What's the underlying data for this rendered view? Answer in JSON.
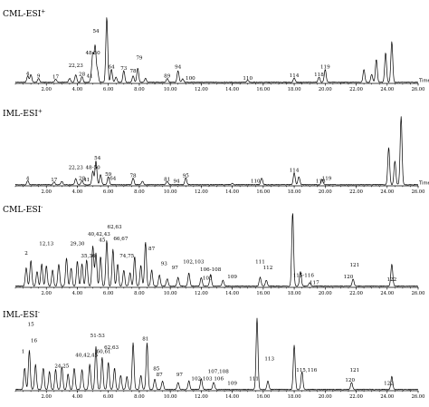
{
  "chart_data": [
    {
      "type": "line",
      "title": "CML-ESI+",
      "title_base": "CML-ESI",
      "title_sup": "+",
      "xlabel": "Time",
      "xlim": [
        0.0,
        26.0
      ],
      "x_ticks": [
        "2.00",
        "4.00",
        "6.00",
        "8.00",
        "10.00",
        "12.00",
        "14.00",
        "16.00",
        "18.00",
        "20.00",
        "22.00",
        "24.00",
        "26.00"
      ],
      "peaks": [
        {
          "t": 0.8,
          "h": 0.1
        },
        {
          "t": 1.0,
          "h": 0.12
        },
        {
          "t": 1.5,
          "h": 0.06
        },
        {
          "t": 2.6,
          "h": 0.05
        },
        {
          "t": 3.5,
          "h": 0.06
        },
        {
          "t": 3.9,
          "h": 0.12
        },
        {
          "t": 4.3,
          "h": 0.09
        },
        {
          "t": 4.9,
          "h": 0.07
        },
        {
          "t": 5.0,
          "h": 0.42
        },
        {
          "t": 5.15,
          "h": 0.55
        },
        {
          "t": 5.3,
          "h": 0.18
        },
        {
          "t": 5.9,
          "h": 1.0
        },
        {
          "t": 6.2,
          "h": 0.2
        },
        {
          "t": 6.5,
          "h": 0.08
        },
        {
          "t": 7.0,
          "h": 0.18
        },
        {
          "t": 7.6,
          "h": 0.1
        },
        {
          "t": 7.9,
          "h": 0.22
        },
        {
          "t": 8.4,
          "h": 0.06
        },
        {
          "t": 9.8,
          "h": 0.06
        },
        {
          "t": 10.5,
          "h": 0.18
        },
        {
          "t": 10.8,
          "h": 0.05
        },
        {
          "t": 15.0,
          "h": 0.03
        },
        {
          "t": 18.0,
          "h": 0.07
        },
        {
          "t": 19.6,
          "h": 0.08
        },
        {
          "t": 20.0,
          "h": 0.2
        },
        {
          "t": 22.5,
          "h": 0.2
        },
        {
          "t": 23.0,
          "h": 0.12
        },
        {
          "t": 23.3,
          "h": 0.35
        },
        {
          "t": 23.9,
          "h": 0.45
        },
        {
          "t": 24.3,
          "h": 0.62
        }
      ],
      "labels": [
        {
          "text": "4",
          "t": 0.8,
          "h": 0.1
        },
        {
          "text": "9",
          "t": 1.5,
          "h": 0.06
        },
        {
          "text": "17",
          "t": 2.6,
          "h": 0.05
        },
        {
          "text": "22,23",
          "t": 3.9,
          "h": 0.22
        },
        {
          "text": "28",
          "t": 4.3,
          "h": 0.09
        },
        {
          "text": "41",
          "t": 4.8,
          "h": 0.06
        },
        {
          "text": "48-50",
          "t": 5.0,
          "h": 0.42
        },
        {
          "text": "54",
          "t": 5.2,
          "h": 0.75
        },
        {
          "text": "64",
          "t": 6.2,
          "h": 0.2
        },
        {
          "text": "73",
          "t": 7.0,
          "h": 0.18
        },
        {
          "text": "78",
          "t": 7.6,
          "h": 0.14
        },
        {
          "text": "79",
          "t": 8.0,
          "h": 0.34
        },
        {
          "text": "89",
          "t": 9.8,
          "h": 0.06
        },
        {
          "text": "94",
          "t": 10.5,
          "h": 0.2
        },
        {
          "text": "100",
          "t": 11.3,
          "h": 0.03
        },
        {
          "text": "110",
          "t": 15.0,
          "h": 0.03
        },
        {
          "text": "114",
          "t": 18.0,
          "h": 0.07
        },
        {
          "text": "118",
          "t": 19.6,
          "h": 0.08
        },
        {
          "text": "119",
          "t": 20.0,
          "h": 0.2
        }
      ]
    },
    {
      "type": "line",
      "title": "IML-ESI+",
      "title_base": "IML-ESI",
      "title_sup": "+",
      "xlabel": "Time",
      "xlim": [
        0.0,
        26.0
      ],
      "x_ticks": [
        "2.00",
        "4.00",
        "6.00",
        "8.00",
        "10.00",
        "12.00",
        "14.00",
        "16.00",
        "18.00",
        "20.00",
        "22.00",
        "24.00",
        "26.00"
      ],
      "peaks": [
        {
          "t": 0.8,
          "h": 0.06
        },
        {
          "t": 2.5,
          "h": 0.04
        },
        {
          "t": 3.0,
          "h": 0.05
        },
        {
          "t": 3.9,
          "h": 0.09
        },
        {
          "t": 4.3,
          "h": 0.06
        },
        {
          "t": 5.0,
          "h": 0.2
        },
        {
          "t": 5.2,
          "h": 0.35
        },
        {
          "t": 5.5,
          "h": 0.15
        },
        {
          "t": 6.0,
          "h": 0.12
        },
        {
          "t": 7.6,
          "h": 0.1
        },
        {
          "t": 8.2,
          "h": 0.05
        },
        {
          "t": 9.8,
          "h": 0.05
        },
        {
          "t": 11.0,
          "h": 0.1
        },
        {
          "t": 14.0,
          "h": 0.02
        },
        {
          "t": 15.9,
          "h": 0.1
        },
        {
          "t": 18.0,
          "h": 0.18
        },
        {
          "t": 18.3,
          "h": 0.12
        },
        {
          "t": 19.8,
          "h": 0.08
        },
        {
          "t": 24.1,
          "h": 0.55
        },
        {
          "t": 24.5,
          "h": 0.35
        },
        {
          "t": 24.9,
          "h": 1.0
        }
      ],
      "labels": [
        {
          "text": "4",
          "t": 0.8,
          "h": 0.06
        },
        {
          "text": "17",
          "t": 2.5,
          "h": 0.04
        },
        {
          "text": "22,23",
          "t": 3.9,
          "h": 0.22
        },
        {
          "text": "28",
          "t": 4.3,
          "h": 0.06
        },
        {
          "text": "41",
          "t": 4.6,
          "h": 0.04
        },
        {
          "text": "48-50",
          "t": 5.0,
          "h": 0.22
        },
        {
          "text": "54",
          "t": 5.3,
          "h": 0.36
        },
        {
          "text": "59",
          "t": 6.0,
          "h": 0.12
        },
        {
          "text": "64",
          "t": 6.3,
          "h": 0.06
        },
        {
          "text": "78",
          "t": 7.6,
          "h": 0.1
        },
        {
          "text": "81",
          "t": 9.8,
          "h": 0.05
        },
        {
          "text": "94",
          "t": 10.4,
          "h": 0.02
        },
        {
          "text": "95",
          "t": 11.0,
          "h": 0.1
        },
        {
          "text": "110",
          "t": 15.5,
          "h": 0.02
        },
        {
          "text": "114",
          "t": 18.0,
          "h": 0.18
        },
        {
          "text": "118",
          "t": 19.7,
          "h": 0.02
        },
        {
          "text": "119",
          "t": 20.1,
          "h": 0.06
        }
      ]
    },
    {
      "type": "line",
      "title": "CML-ESI-",
      "title_base": "CML-ESI",
      "title_sup": "-",
      "xlabel": "",
      "xlim": [
        0.0,
        26.0
      ],
      "x_ticks": [
        "2.00",
        "4.00",
        "6.00",
        "8.00",
        "10.00",
        "12.00",
        "14.00",
        "16.00",
        "18.00",
        "20.00",
        "22.00",
        "24.00",
        "26.00"
      ],
      "peaks": [
        {
          "t": 0.7,
          "h": 0.25
        },
        {
          "t": 1.0,
          "h": 0.35
        },
        {
          "t": 1.4,
          "h": 0.2
        },
        {
          "t": 1.7,
          "h": 0.3
        },
        {
          "t": 2.0,
          "h": 0.28
        },
        {
          "t": 2.4,
          "h": 0.22
        },
        {
          "t": 2.8,
          "h": 0.3
        },
        {
          "t": 3.3,
          "h": 0.38
        },
        {
          "t": 3.6,
          "h": 0.25
        },
        {
          "t": 4.0,
          "h": 0.34
        },
        {
          "t": 4.3,
          "h": 0.3
        },
        {
          "t": 4.6,
          "h": 0.36
        },
        {
          "t": 5.0,
          "h": 0.55
        },
        {
          "t": 5.2,
          "h": 0.45
        },
        {
          "t": 5.5,
          "h": 0.4
        },
        {
          "t": 5.9,
          "h": 0.62
        },
        {
          "t": 6.3,
          "h": 0.5
        },
        {
          "t": 6.6,
          "h": 0.3
        },
        {
          "t": 7.0,
          "h": 0.22
        },
        {
          "t": 7.4,
          "h": 0.18
        },
        {
          "t": 7.7,
          "h": 0.4
        },
        {
          "t": 8.1,
          "h": 0.28
        },
        {
          "t": 8.4,
          "h": 0.6
        },
        {
          "t": 8.8,
          "h": 0.22
        },
        {
          "t": 9.3,
          "h": 0.15
        },
        {
          "t": 9.8,
          "h": 0.1
        },
        {
          "t": 10.5,
          "h": 0.12
        },
        {
          "t": 11.2,
          "h": 0.18
        },
        {
          "t": 12.0,
          "h": 0.12
        },
        {
          "t": 12.6,
          "h": 0.16
        },
        {
          "t": 13.4,
          "h": 0.08
        },
        {
          "t": 15.8,
          "h": 0.12
        },
        {
          "t": 16.2,
          "h": 0.08
        },
        {
          "t": 17.9,
          "h": 1.0
        },
        {
          "t": 18.4,
          "h": 0.2
        },
        {
          "t": 19.0,
          "h": 0.05
        },
        {
          "t": 21.8,
          "h": 0.1
        },
        {
          "t": 24.3,
          "h": 0.3
        }
      ],
      "labels": [
        {
          "text": "2",
          "t": 0.7,
          "h": 0.42
        },
        {
          "text": "12,13",
          "t": 2.0,
          "h": 0.55
        },
        {
          "text": "29,30",
          "t": 4.0,
          "h": 0.55
        },
        {
          "text": "35,36",
          "t": 4.7,
          "h": 0.38
        },
        {
          "text": "40,42,43",
          "t": 5.4,
          "h": 0.68
        },
        {
          "text": "45",
          "t": 5.6,
          "h": 0.6
        },
        {
          "text": "62,63",
          "t": 6.4,
          "h": 0.78
        },
        {
          "text": "66,67",
          "t": 6.8,
          "h": 0.62
        },
        {
          "text": "74,75",
          "t": 7.2,
          "h": 0.38
        },
        {
          "text": "87",
          "t": 8.8,
          "h": 0.48
        },
        {
          "text": "93",
          "t": 9.6,
          "h": 0.28
        },
        {
          "text": "97",
          "t": 10.3,
          "h": 0.22
        },
        {
          "text": "102,103",
          "t": 11.5,
          "h": 0.3
        },
        {
          "text": "106-108",
          "t": 12.6,
          "h": 0.2
        },
        {
          "text": "105",
          "t": 12.4,
          "h": 0.08
        },
        {
          "text": "109",
          "t": 14.0,
          "h": 0.1
        },
        {
          "text": "111",
          "t": 15.8,
          "h": 0.3
        },
        {
          "text": "112",
          "t": 16.3,
          "h": 0.22
        },
        {
          "text": "115-116",
          "t": 18.6,
          "h": 0.12
        },
        {
          "text": "117",
          "t": 19.3,
          "h": 0.02
        },
        {
          "text": "120",
          "t": 21.5,
          "h": 0.1
        },
        {
          "text": "121",
          "t": 21.9,
          "h": 0.26
        },
        {
          "text": "122",
          "t": 24.3,
          "h": 0.06
        }
      ]
    },
    {
      "type": "line",
      "title": "IML-ESI-",
      "title_base": "IML-ESI",
      "title_sup": "-",
      "xlabel": "",
      "xlim": [
        0.0,
        26.0
      ],
      "x_ticks": [
        "2.00",
        "4.00",
        "6.00",
        "8.00",
        "10.00",
        "12.00",
        "14.00",
        "16.00",
        "18.00",
        "20.00",
        "22.00",
        "24.00",
        "26.00"
      ],
      "peaks": [
        {
          "t": 0.6,
          "h": 0.3
        },
        {
          "t": 0.9,
          "h": 0.55
        },
        {
          "t": 1.3,
          "h": 0.35
        },
        {
          "t": 1.8,
          "h": 0.3
        },
        {
          "t": 2.2,
          "h": 0.25
        },
        {
          "t": 2.6,
          "h": 0.28
        },
        {
          "t": 3.0,
          "h": 0.32
        },
        {
          "t": 3.4,
          "h": 0.22
        },
        {
          "t": 3.8,
          "h": 0.3
        },
        {
          "t": 4.3,
          "h": 0.28
        },
        {
          "t": 4.8,
          "h": 0.35
        },
        {
          "t": 5.2,
          "h": 0.6
        },
        {
          "t": 5.6,
          "h": 0.45
        },
        {
          "t": 6.0,
          "h": 0.38
        },
        {
          "t": 6.4,
          "h": 0.3
        },
        {
          "t": 6.8,
          "h": 0.2
        },
        {
          "t": 7.2,
          "h": 0.18
        },
        {
          "t": 7.6,
          "h": 0.65
        },
        {
          "t": 8.1,
          "h": 0.2
        },
        {
          "t": 8.5,
          "h": 0.65
        },
        {
          "t": 9.0,
          "h": 0.15
        },
        {
          "t": 9.5,
          "h": 0.12
        },
        {
          "t": 10.5,
          "h": 0.1
        },
        {
          "t": 11.2,
          "h": 0.12
        },
        {
          "t": 12.0,
          "h": 0.15
        },
        {
          "t": 12.8,
          "h": 0.1
        },
        {
          "t": 15.6,
          "h": 1.0
        },
        {
          "t": 16.3,
          "h": 0.12
        },
        {
          "t": 18.0,
          "h": 0.62
        },
        {
          "t": 18.5,
          "h": 0.25
        },
        {
          "t": 21.7,
          "h": 0.1
        },
        {
          "t": 24.3,
          "h": 0.18
        }
      ],
      "labels": [
        {
          "text": "1",
          "t": 0.5,
          "h": 0.5
        },
        {
          "text": "15",
          "t": 1.0,
          "h": 0.88
        },
        {
          "text": "16",
          "t": 1.2,
          "h": 0.65
        },
        {
          "text": "24,25",
          "t": 3.0,
          "h": 0.3
        },
        {
          "text": "40,42,45",
          "t": 4.6,
          "h": 0.45
        },
        {
          "text": "51-53",
          "t": 5.3,
          "h": 0.72
        },
        {
          "text": "60,61",
          "t": 5.7,
          "h": 0.5
        },
        {
          "text": "62,63",
          "t": 6.2,
          "h": 0.56
        },
        {
          "text": "81",
          "t": 8.4,
          "h": 0.68
        },
        {
          "text": "85",
          "t": 9.1,
          "h": 0.26
        },
        {
          "text": "87",
          "t": 9.3,
          "h": 0.18
        },
        {
          "text": "97",
          "t": 10.6,
          "h": 0.18
        },
        {
          "text": "102 103 106",
          "t": 12.4,
          "h": 0.12
        },
        {
          "text": "107,108",
          "t": 13.1,
          "h": 0.22
        },
        {
          "text": "109",
          "t": 14.0,
          "h": 0.06
        },
        {
          "text": "111",
          "t": 15.4,
          "h": 0.12
        },
        {
          "text": "113",
          "t": 16.4,
          "h": 0.4
        },
        {
          "text": "115,116",
          "t": 18.8,
          "h": 0.24
        },
        {
          "text": "120",
          "t": 21.6,
          "h": 0.1
        },
        {
          "text": "121",
          "t": 21.9,
          "h": 0.24
        },
        {
          "text": "122",
          "t": 24.1,
          "h": 0.06
        }
      ]
    }
  ]
}
